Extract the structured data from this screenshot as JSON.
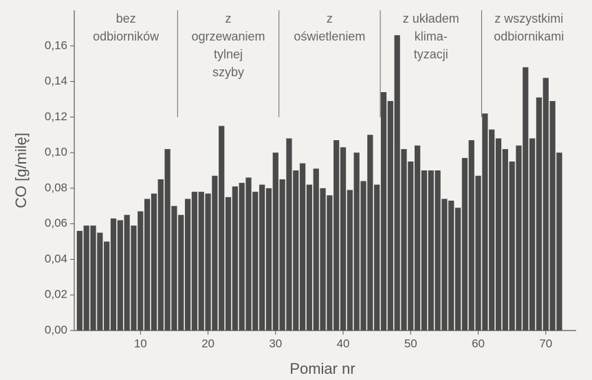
{
  "chart_data": {
    "type": "bar",
    "x_label": "Pomiar nr",
    "y_label": "CO [g/milę]",
    "x": [
      1,
      2,
      3,
      4,
      5,
      6,
      7,
      8,
      9,
      10,
      11,
      12,
      13,
      14,
      15,
      16,
      17,
      18,
      19,
      20,
      21,
      22,
      23,
      24,
      25,
      26,
      27,
      28,
      29,
      30,
      31,
      32,
      33,
      34,
      35,
      36,
      37,
      38,
      39,
      40,
      41,
      42,
      43,
      44,
      45,
      46,
      47,
      48,
      49,
      50,
      51,
      52,
      53,
      54,
      55,
      56,
      57,
      58,
      59,
      60,
      61,
      62,
      63,
      64,
      65,
      66,
      67,
      68,
      69,
      70,
      71,
      72
    ],
    "values": [
      0.056,
      0.059,
      0.059,
      0.055,
      0.05,
      0.063,
      0.062,
      0.065,
      0.059,
      0.067,
      0.074,
      0.077,
      0.085,
      0.102,
      0.07,
      0.065,
      0.074,
      0.078,
      0.078,
      0.077,
      0.087,
      0.115,
      0.075,
      0.081,
      0.083,
      0.086,
      0.078,
      0.082,
      0.08,
      0.1,
      0.085,
      0.108,
      0.09,
      0.094,
      0.082,
      0.091,
      0.08,
      0.076,
      0.107,
      0.103,
      0.079,
      0.1,
      0.084,
      0.11,
      0.082,
      0.134,
      0.129,
      0.166,
      0.102,
      0.095,
      0.104,
      0.09,
      0.09,
      0.09,
      0.074,
      0.073,
      0.069,
      0.097,
      0.107,
      0.087,
      0.122,
      0.113,
      0.108,
      0.102,
      0.095,
      0.104,
      0.148,
      0.108,
      0.131,
      0.142,
      0.129,
      0.1
    ],
    "color": "#4a4a4a",
    "xlim": [
      0.2,
      74.5
    ],
    "ylim": [
      0,
      0.18
    ],
    "xticks": [
      10,
      20,
      30,
      40,
      50,
      60,
      70
    ],
    "yticks": [
      {
        "value": 0,
        "label": "0,00"
      },
      {
        "value": 0.02,
        "label": "0,02"
      },
      {
        "value": 0.04,
        "label": "0,04"
      },
      {
        "value": 0.06,
        "label": "0,06"
      },
      {
        "value": 0.08,
        "label": "0,08"
      },
      {
        "value": 0.1,
        "label": "0,10"
      },
      {
        "value": 0.12,
        "label": "0,12"
      },
      {
        "value": 0.14,
        "label": "0,14"
      },
      {
        "value": 0.16,
        "label": "0,16"
      }
    ],
    "dividers": [
      15.5,
      30.5,
      45.5,
      60.5
    ],
    "annotations": [
      {
        "lines": [
          "bez",
          "odbiorników"
        ]
      },
      {
        "lines": [
          "z",
          "ogrzewaniem",
          "tylnej",
          "szyby"
        ]
      },
      {
        "lines": [
          "z",
          "oświetleniem"
        ]
      },
      {
        "lines": [
          "z układem",
          "klima-",
          "tyzacji"
        ]
      },
      {
        "lines": [
          "z wszystkimi",
          "odbiornikami"
        ]
      }
    ]
  }
}
